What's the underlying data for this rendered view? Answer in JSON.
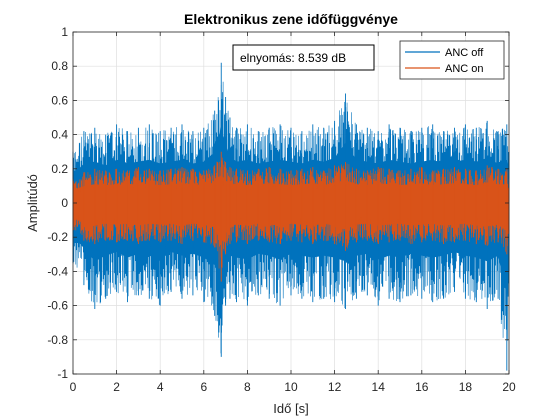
{
  "chart_data": {
    "type": "line",
    "title": "Elektronikus zene időfüggvénye",
    "xlabel": "Idő [s]",
    "ylabel": "Amplitúdó",
    "xlim": [
      0,
      20
    ],
    "ylim": [
      -1,
      1
    ],
    "xticks": [
      "0",
      "2",
      "4",
      "6",
      "8",
      "10",
      "12",
      "14",
      "16",
      "18",
      "20"
    ],
    "yticks": [
      "-1",
      "-0.8",
      "-0.6",
      "-0.4",
      "-0.2",
      "0",
      "0.2",
      "0.4",
      "0.6",
      "0.8",
      "1"
    ],
    "grid": true,
    "legend_position": "top-right",
    "annotation": "elnyomás: 8.539 dB",
    "series": [
      {
        "name": "ANC off",
        "color": "#0072BD",
        "x": [
          0,
          0.5,
          1,
          1.5,
          2,
          2.5,
          3,
          3.5,
          4,
          4.5,
          5,
          5.5,
          6,
          6.5,
          6.8,
          7,
          7.2,
          7.5,
          8,
          8.5,
          9,
          9.5,
          10,
          10.5,
          11,
          11.5,
          12,
          12.5,
          13,
          13.5,
          14,
          14.5,
          15,
          15.5,
          16,
          16.5,
          17,
          17.5,
          18,
          18.5,
          19,
          19.5,
          19.9,
          20
        ],
        "upper": [
          0.3,
          0.42,
          0.44,
          0.4,
          0.46,
          0.42,
          0.44,
          0.46,
          0.42,
          0.44,
          0.46,
          0.42,
          0.44,
          0.54,
          0.82,
          0.62,
          0.5,
          0.44,
          0.46,
          0.42,
          0.44,
          0.46,
          0.44,
          0.42,
          0.46,
          0.44,
          0.48,
          0.64,
          0.46,
          0.44,
          0.42,
          0.46,
          0.44,
          0.42,
          0.44,
          0.46,
          0.42,
          0.44,
          0.46,
          0.44,
          0.48,
          0.42,
          0.46,
          0.3
        ],
        "lower": [
          -0.35,
          -0.48,
          -0.62,
          -0.56,
          -0.52,
          -0.58,
          -0.54,
          -0.56,
          -0.6,
          -0.52,
          -0.56,
          -0.54,
          -0.58,
          -0.66,
          -0.9,
          -0.6,
          -0.56,
          -0.58,
          -0.6,
          -0.54,
          -0.56,
          -0.6,
          -0.54,
          -0.56,
          -0.58,
          -0.56,
          -0.58,
          -0.62,
          -0.56,
          -0.54,
          -0.6,
          -0.56,
          -0.58,
          -0.54,
          -0.56,
          -0.58,
          -0.56,
          -0.52,
          -0.56,
          -0.58,
          -0.62,
          -0.56,
          -0.98,
          -0.4
        ]
      },
      {
        "name": "ANC on",
        "color": "#D95319",
        "x": [
          0,
          0.5,
          1,
          1.5,
          2,
          2.5,
          3,
          3.5,
          4,
          4.5,
          5,
          5.5,
          6,
          6.5,
          6.8,
          7,
          7.2,
          7.5,
          8,
          8.5,
          9,
          9.5,
          10,
          10.5,
          11,
          11.5,
          12,
          12.5,
          13,
          13.5,
          14,
          14.5,
          15,
          15.5,
          16,
          16.5,
          17,
          17.5,
          18,
          18.5,
          19,
          19.5,
          19.9,
          20
        ],
        "upper": [
          0.14,
          0.18,
          0.2,
          0.19,
          0.2,
          0.19,
          0.21,
          0.2,
          0.19,
          0.2,
          0.21,
          0.2,
          0.19,
          0.22,
          0.3,
          0.24,
          0.21,
          0.2,
          0.19,
          0.2,
          0.21,
          0.2,
          0.19,
          0.2,
          0.21,
          0.19,
          0.22,
          0.24,
          0.2,
          0.19,
          0.21,
          0.2,
          0.19,
          0.2,
          0.21,
          0.19,
          0.2,
          0.21,
          0.2,
          0.19,
          0.22,
          0.2,
          0.2,
          0.14
        ],
        "lower": [
          -0.16,
          -0.22,
          -0.24,
          -0.22,
          -0.23,
          -0.22,
          -0.24,
          -0.22,
          -0.23,
          -0.22,
          -0.24,
          -0.22,
          -0.23,
          -0.26,
          -0.46,
          -0.3,
          -0.24,
          -0.23,
          -0.24,
          -0.22,
          -0.23,
          -0.24,
          -0.22,
          -0.23,
          -0.24,
          -0.22,
          -0.24,
          -0.28,
          -0.23,
          -0.22,
          -0.24,
          -0.23,
          -0.22,
          -0.24,
          -0.23,
          -0.22,
          -0.24,
          -0.23,
          -0.22,
          -0.24,
          -0.25,
          -0.23,
          -0.3,
          -0.16
        ]
      }
    ]
  }
}
